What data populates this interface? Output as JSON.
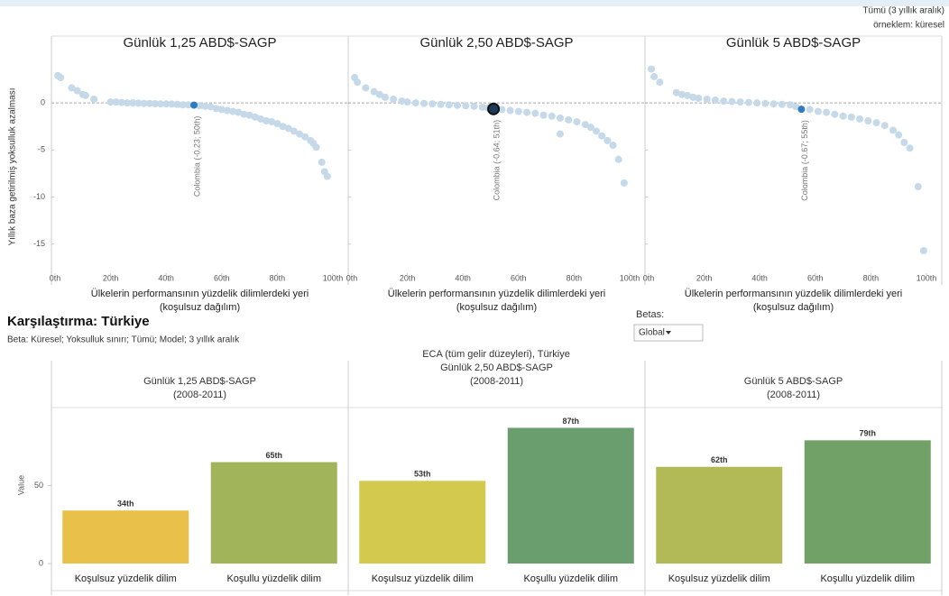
{
  "note": [
    "Tümü (3 yıllık aralık)",
    "örneklem: küresel"
  ],
  "control": {
    "label": "Betas:",
    "value": "Global"
  },
  "chart_data": [
    {
      "type": "scatter",
      "title": "Günlük 1,25 ABD$-SAGP",
      "ylabel": "Yıllık baza getirilmiş yoksulluk azalması",
      "xlabel": [
        "Ülkelerin performansının yüzdelik dilimlerdeki yeri",
        "(koşulsuz dağılım)"
      ],
      "color": "#c5d9e8",
      "reference_line": 0,
      "x": [
        1,
        2,
        6,
        8,
        10,
        11,
        14,
        20,
        22,
        24,
        26,
        28,
        30,
        32,
        34,
        36,
        38,
        40,
        42,
        44,
        46,
        48,
        52,
        54,
        56,
        58,
        60,
        62,
        64,
        66,
        68,
        70,
        72,
        74,
        76,
        78,
        80,
        82,
        84,
        86,
        88,
        90,
        92,
        93,
        94,
        96,
        97,
        98
      ],
      "y": [
        2.9,
        2.7,
        1.6,
        1.3,
        0.9,
        0.8,
        0.4,
        0.1,
        0.1,
        0.05,
        0,
        0,
        -0.02,
        -0.05,
        -0.05,
        -0.08,
        -0.1,
        -0.1,
        -0.12,
        -0.15,
        -0.2,
        -0.2,
        -0.3,
        -0.35,
        -0.4,
        -0.6,
        -0.7,
        -0.8,
        -0.9,
        -1.0,
        -1.2,
        -1.3,
        -1.5,
        -1.7,
        -1.9,
        -2.0,
        -2.2,
        -2.5,
        -2.7,
        -3.0,
        -3.3,
        -3.6,
        -4.0,
        -4.3,
        -4.7,
        -6.3,
        -7.3,
        -7.8
      ],
      "highlight": {
        "x": 50,
        "y": -0.23,
        "label": "Colombia (-0.23; 50th)",
        "color": "#2f7bbf",
        "size": 4
      },
      "xlim": [
        0,
        100
      ],
      "ylim": [
        -18,
        5
      ],
      "xticks": [
        {
          "value": 0,
          "label": "0th"
        },
        {
          "value": 20,
          "label": "20th"
        },
        {
          "value": 40,
          "label": "40th"
        },
        {
          "value": 60,
          "label": "60th"
        },
        {
          "value": 80,
          "label": "80th"
        },
        {
          "value": 100,
          "label": "100th"
        }
      ],
      "yticks": [
        -15,
        -10,
        -5,
        0
      ]
    },
    {
      "type": "scatter",
      "title": "Günlük 2,50 ABD$-SAGP",
      "xlabel": [
        "Ülkelerin performansının yüzdelik dilimlerdeki yeri",
        "(koşulsuz dağılım)"
      ],
      "color": "#c5d9e8",
      "reference_line": 0,
      "x": [
        1,
        2,
        5,
        8,
        10,
        12,
        15,
        18,
        20,
        23,
        26,
        29,
        32,
        35,
        38,
        41,
        44,
        47,
        49,
        54,
        57,
        60,
        63,
        66,
        69,
        72,
        75,
        78,
        81,
        84,
        86,
        88,
        90,
        75,
        92,
        94,
        96,
        98
      ],
      "y": [
        2.7,
        2.2,
        1.6,
        1.2,
        0.9,
        0.6,
        0.4,
        0.2,
        0.1,
        0,
        -0.05,
        -0.1,
        -0.15,
        -0.2,
        -0.25,
        -0.3,
        -0.35,
        -0.45,
        -0.55,
        -0.7,
        -0.8,
        -0.9,
        -1.0,
        -1.1,
        -1.3,
        -1.4,
        -1.6,
        -1.8,
        -2.0,
        -2.3,
        -2.6,
        -3.0,
        -3.5,
        -3.3,
        -4.0,
        -4.5,
        -6.0,
        -8.5
      ],
      "highlight": {
        "x": 51,
        "y": -0.64,
        "label": "Colombia (-0.64; 51th)",
        "color": "#1d3a5c",
        "size": 6
      },
      "xlim": [
        0,
        100
      ],
      "ylim": [
        -18,
        5
      ],
      "xticks": [
        {
          "value": 0,
          "label": "0th"
        },
        {
          "value": 20,
          "label": "20th"
        },
        {
          "value": 40,
          "label": "40th"
        },
        {
          "value": 60,
          "label": "60th"
        },
        {
          "value": 80,
          "label": "80th"
        },
        {
          "value": 100,
          "label": "100th"
        }
      ],
      "yticks": [
        -15,
        -10,
        -5,
        0
      ]
    },
    {
      "type": "scatter",
      "title": "Günlük 5 ABD$-SAGP",
      "xlabel": [
        "Ülkelerin performansının yüzdelik dilimlerdeki yeri",
        "(koşulsuz dağılım)"
      ],
      "color": "#c5d9e8",
      "reference_line": 0,
      "x": [
        1,
        2,
        4,
        10,
        12,
        14,
        16,
        18,
        21,
        24,
        27,
        30,
        33,
        36,
        39,
        42,
        45,
        48,
        51,
        53,
        58,
        61,
        64,
        67,
        70,
        73,
        76,
        79,
        82,
        85,
        88,
        90,
        92,
        94,
        97,
        99
      ],
      "y": [
        3.6,
        2.8,
        2.2,
        1.1,
        0.9,
        0.8,
        0.6,
        0.5,
        0.4,
        0.3,
        0.2,
        0.15,
        0.1,
        0.05,
        0,
        -0.05,
        -0.1,
        -0.15,
        -0.2,
        -0.4,
        -0.7,
        -0.9,
        -1.0,
        -1.2,
        -1.4,
        -1.5,
        -1.7,
        -1.9,
        -2.1,
        -2.4,
        -2.9,
        -3.4,
        -4.2,
        -4.8,
        -8.9,
        -15.7
      ],
      "highlight": {
        "x": 55,
        "y": -0.67,
        "label": "Colombia (-0.67; 55th)",
        "color": "#2f7bbf",
        "size": 4
      },
      "xlim": [
        0,
        100
      ],
      "ylim": [
        -18,
        5
      ],
      "xticks": [
        {
          "value": 0,
          "label": "0th"
        },
        {
          "value": 20,
          "label": "20th"
        },
        {
          "value": 40,
          "label": "40th"
        },
        {
          "value": 60,
          "label": "60th"
        },
        {
          "value": 80,
          "label": "80th"
        },
        {
          "value": 100,
          "label": "100th"
        }
      ],
      "yticks": [
        -15,
        -10,
        -5,
        0
      ]
    },
    {
      "type": "bar",
      "title": "Karşılaştırma: Türkiye",
      "subtitle": "Beta: Küresel; Yoksulluk sınırı; Tümü; Model; 3 yıllık aralık",
      "header": "ECA (tüm gelir düzeyleri), Türkiye",
      "ylabel": "Value",
      "ylim": [
        0,
        100
      ],
      "yticks": [
        0,
        50
      ],
      "panels": [
        {
          "title": [
            "Günlük 1,25 ABD$-SAGP",
            "(2008-2011)"
          ],
          "categories": [
            "Koşulsuz yüzdelik dilim",
            "Koşullu yüzdelik dilim"
          ],
          "values": [
            34,
            65
          ],
          "value_labels": [
            "34th",
            "65th"
          ],
          "colors": [
            "#e9c04a",
            "#a2b45a"
          ]
        },
        {
          "title": [
            "Günlük 2,50 ABD$-SAGP",
            "(2008-2011)"
          ],
          "categories": [
            "Koşulsuz yüzdelik dilim",
            "Koşullu yüzdelik dilim"
          ],
          "values": [
            53,
            87
          ],
          "value_labels": [
            "53th",
            "87th"
          ],
          "colors": [
            "#d3c94e",
            "#6a9e6e"
          ]
        },
        {
          "title": [
            "Günlük 5 ABD$-SAGP",
            "(2008-2011)"
          ],
          "categories": [
            "Koşulsuz yüzdelik dilim",
            "Koşullu yüzdelik dilim"
          ],
          "values": [
            62,
            79
          ],
          "value_labels": [
            "62th",
            "79th"
          ],
          "colors": [
            "#b2ba58",
            "#71a166"
          ]
        }
      ]
    }
  ]
}
